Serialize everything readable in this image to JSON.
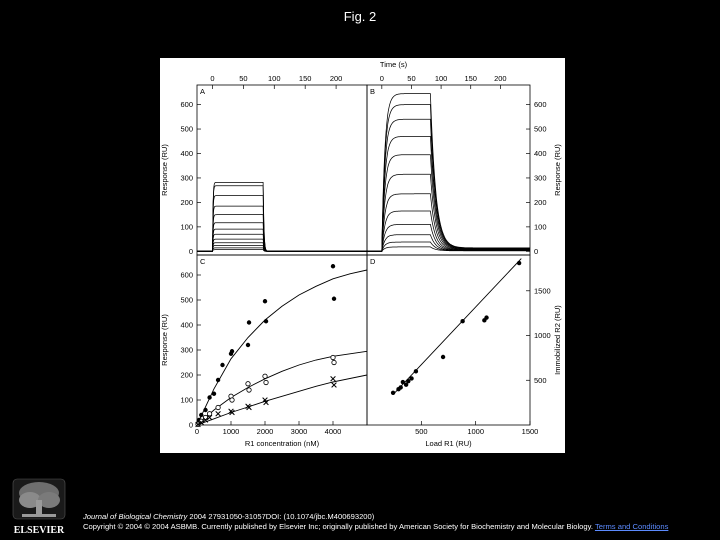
{
  "page_title": "Fig. 2",
  "publisher": {
    "name": "ELSEVIER"
  },
  "caption": {
    "journal": "Journal of Biological Chemistry",
    "citation": " 2004 27931050-31057DOI: (10.1074/jbc.M400693200)",
    "copyright": "Copyright © 2004 © 2004 ASBMB. Currently published by Elsevier Inc; originally published by American Society for Biochemistry and Molecular Biology.",
    "link_text": "Terms and Conditions"
  },
  "colors": {
    "background": "#000000",
    "panel": "#ffffff",
    "ink": "#000000",
    "link": "#5c8bff"
  },
  "chart_data": [
    {
      "panel": "A",
      "type": "line",
      "xlabel": "Time (s)",
      "ylabel": "Response (RU)",
      "xlim": [
        -25,
        250
      ],
      "ylim": [
        -15,
        680
      ],
      "x_ticks": [
        0,
        50,
        100,
        150,
        200
      ],
      "y_ticks": [
        0,
        100,
        200,
        300,
        400,
        500,
        600
      ],
      "legend": "none",
      "grid": false,
      "injection": {
        "start": 0,
        "end": 82
      },
      "plateau_levels": [
        282,
        268,
        228,
        185,
        150,
        117,
        91,
        70,
        50,
        35,
        24,
        14,
        7
      ]
    },
    {
      "panel": "B",
      "type": "line",
      "xlabel": "Time (s)",
      "ylabel": "Response (RU)",
      "xlim": [
        -25,
        250
      ],
      "ylim": [
        -15,
        680
      ],
      "x_ticks": [
        0,
        50,
        100,
        150,
        200
      ],
      "y_ticks": [
        0,
        100,
        200,
        300,
        400,
        500,
        600
      ],
      "legend": "none",
      "grid": false,
      "injection": {
        "start": 0,
        "end": 82
      },
      "plateau_levels": [
        645,
        600,
        540,
        470,
        395,
        315,
        235,
        165,
        110,
        68,
        38,
        18
      ],
      "baseline_after_dissociation": 12
    },
    {
      "panel": "C",
      "type": "scatter",
      "xlabel": "R1 concentration (nM)",
      "ylabel": "Response (RU)",
      "xlim": [
        0,
        5000
      ],
      "ylim": [
        0,
        680
      ],
      "x_ticks": [
        0,
        1000,
        2000,
        3000,
        4000
      ],
      "y_ticks": [
        0,
        100,
        200,
        300,
        400,
        500,
        600
      ],
      "legend": "none",
      "grid": false,
      "series": [
        {
          "marker": "filled-circle",
          "points": [
            [
              30,
              5
            ],
            [
              60,
              20
            ],
            [
              125,
              40
            ],
            [
              250,
              60
            ],
            [
              370,
              110
            ],
            [
              500,
              125
            ],
            [
              620,
              180
            ],
            [
              750,
              240
            ],
            [
              1000,
              285
            ],
            [
              1030,
              295
            ],
            [
              1500,
              320
            ],
            [
              1530,
              410
            ],
            [
              2000,
              495
            ],
            [
              2030,
              415
            ],
            [
              4000,
              635
            ],
            [
              4030,
              505
            ]
          ],
          "fit": [
            [
              0,
              0
            ],
            [
              500,
              145
            ],
            [
              1000,
              265
            ],
            [
              1500,
              350
            ],
            [
              2000,
              420
            ],
            [
              2500,
              475
            ],
            [
              3000,
              520
            ],
            [
              3500,
              555
            ],
            [
              4000,
              585
            ],
            [
              4500,
              605
            ],
            [
              5000,
              620
            ]
          ]
        },
        {
          "marker": "open-circle",
          "points": [
            [
              30,
              3
            ],
            [
              125,
              15
            ],
            [
              250,
              30
            ],
            [
              370,
              45
            ],
            [
              620,
              70
            ],
            [
              1000,
              115
            ],
            [
              1030,
              100
            ],
            [
              1500,
              165
            ],
            [
              1530,
              140
            ],
            [
              2000,
              195
            ],
            [
              2030,
              170
            ],
            [
              4000,
              270
            ],
            [
              4030,
              250
            ]
          ],
          "fit": [
            [
              0,
              0
            ],
            [
              500,
              60
            ],
            [
              1000,
              110
            ],
            [
              1500,
              150
            ],
            [
              2000,
              185
            ],
            [
              2500,
              215
            ],
            [
              3000,
              240
            ],
            [
              3500,
              260
            ],
            [
              4000,
              275
            ],
            [
              5000,
              295
            ]
          ]
        },
        {
          "marker": "cross",
          "points": [
            [
              30,
              2
            ],
            [
              125,
              10
            ],
            [
              250,
              20
            ],
            [
              370,
              30
            ],
            [
              620,
              45
            ],
            [
              1000,
              55
            ],
            [
              1030,
              50
            ],
            [
              1500,
              75
            ],
            [
              1530,
              70
            ],
            [
              2000,
              100
            ],
            [
              2030,
              90
            ],
            [
              4000,
              185
            ],
            [
              4030,
              160
            ]
          ],
          "fit": [
            [
              0,
              0
            ],
            [
              500,
              25
            ],
            [
              1000,
              50
            ],
            [
              1500,
              72
            ],
            [
              2000,
              95
            ],
            [
              2500,
              115
            ],
            [
              3000,
              135
            ],
            [
              3500,
              155
            ],
            [
              4000,
              172
            ],
            [
              5000,
              200
            ]
          ]
        }
      ]
    },
    {
      "panel": "D",
      "type": "scatter",
      "xlabel": "Load R1 (RU)",
      "ylabel": "Immobilized R2 (RU)",
      "xlim": [
        0,
        1500
      ],
      "ylim": [
        0,
        1900
      ],
      "x_ticks": [
        500,
        1000,
        1500
      ],
      "y_ticks": [
        500,
        1000,
        1500
      ],
      "legend": "none",
      "grid": false,
      "series": [
        {
          "marker": "filled-circle",
          "points": [
            [
              240,
              360
            ],
            [
              290,
              400
            ],
            [
              310,
              420
            ],
            [
              330,
              480
            ],
            [
              360,
              450
            ],
            [
              380,
              490
            ],
            [
              410,
              520
            ],
            [
              450,
              600
            ],
            [
              700,
              760
            ],
            [
              880,
              1160
            ],
            [
              1080,
              1170
            ],
            [
              1100,
              1200
            ],
            [
              1400,
              1810
            ]
          ],
          "fit": [
            [
              240,
              340
            ],
            [
              1420,
              1860
            ]
          ]
        }
      ]
    }
  ]
}
